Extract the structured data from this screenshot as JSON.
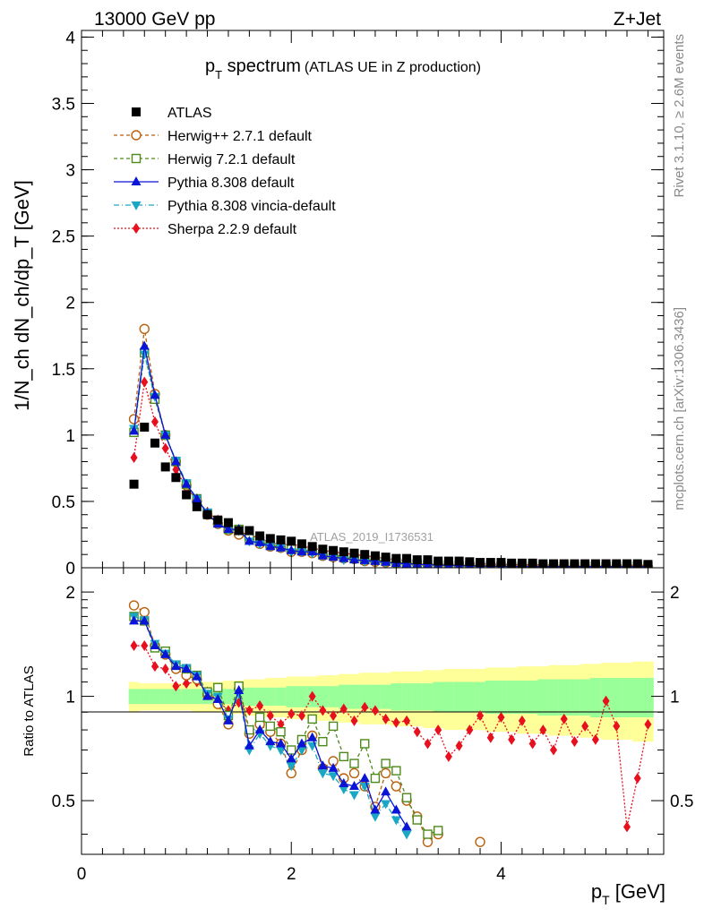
{
  "header": {
    "left": "13000 GeV pp",
    "right": "Z+Jet",
    "rivet": "Rivet 3.1.10, ≥ 2.6M events",
    "mcplots": "mcplots.cern.ch [arXiv:1306.3436]"
  },
  "chart_data": [
    {
      "type": "scatter",
      "title_main": "p",
      "title_sub": "T",
      "title_rest": " spectrum",
      "title_note": "(ATLAS UE in Z production)",
      "ylabel": "1/N_ch dN_ch/dp_T [GeV]",
      "watermark": "ATLAS_2019_I1736531",
      "xlim": [
        0,
        5.55
      ],
      "ylim": [
        0,
        4.05
      ],
      "yticks": [
        "0",
        "0.5",
        "1",
        "1.5",
        "2",
        "2.5",
        "3",
        "3.5",
        "4"
      ],
      "x": [
        0.5,
        0.6,
        0.7,
        0.8,
        0.9,
        1.0,
        1.1,
        1.2,
        1.3,
        1.4,
        1.5,
        1.6,
        1.7,
        1.8,
        1.9,
        2.0,
        2.1,
        2.2,
        2.3,
        2.4,
        2.5,
        2.6,
        2.7,
        2.8,
        2.9,
        3.0,
        3.1,
        3.2,
        3.3,
        3.4,
        3.5,
        3.6,
        3.7,
        3.8,
        3.9,
        4.0,
        4.1,
        4.2,
        4.3,
        4.4,
        4.5,
        4.6,
        4.7,
        4.8,
        4.9,
        5.0,
        5.1,
        5.2,
        5.3,
        5.4
      ],
      "series": [
        {
          "name": "ATLAS",
          "color": "#000000",
          "marker": "square-filled",
          "values": [
            0.63,
            1.06,
            0.94,
            0.76,
            0.68,
            0.55,
            0.46,
            0.4,
            0.36,
            0.34,
            0.28,
            0.28,
            0.24,
            0.22,
            0.21,
            0.2,
            0.18,
            0.16,
            0.14,
            0.13,
            0.12,
            0.11,
            0.1,
            0.09,
            0.08,
            0.07,
            0.07,
            0.06,
            0.06,
            0.05,
            0.05,
            0.05,
            0.045,
            0.04,
            0.04,
            0.04,
            0.035,
            0.035,
            0.035,
            0.03,
            0.03,
            0.03,
            0.03,
            0.03,
            0.03,
            0.03,
            0.03,
            0.03,
            0.03,
            0.025
          ]
        },
        {
          "name": "Herwig++ 2.7.1 default",
          "color": "#b8600a",
          "marker": "circle-open",
          "dash": "4,3",
          "values": [
            1.12,
            1.8,
            1.31,
            1.0,
            0.8,
            0.62,
            0.5,
            0.4,
            0.33,
            0.28,
            0.25,
            0.22,
            0.18,
            0.16,
            0.15,
            0.12,
            0.12,
            0.11,
            0.09,
            0.08,
            0.07,
            0.065,
            0.05,
            0.045,
            0.04,
            0.035,
            0.03,
            0.025,
            0.02,
            0.02,
            0.02,
            0.015,
            0.015,
            0.015,
            0.012,
            0.01,
            0.01,
            0.01,
            0.01,
            0.01,
            0.01,
            0.008,
            0.008,
            0.008,
            0.008,
            0.008,
            0.008,
            0.008,
            0.008,
            0.008
          ]
        },
        {
          "name": "Herwig 7.2.1 default",
          "color": "#4e8a1b",
          "marker": "square-open",
          "dash": "4,3",
          "values": [
            1.02,
            1.62,
            1.27,
            1.0,
            0.8,
            0.63,
            0.52,
            0.41,
            0.35,
            0.29,
            0.29,
            0.22,
            0.2,
            0.17,
            0.16,
            0.14,
            0.13,
            0.13,
            0.1,
            0.1,
            0.08,
            0.07,
            0.06,
            0.06,
            0.05,
            0.04,
            0.035,
            0.03,
            0.025,
            0.022,
            0.02,
            0.018,
            0.016,
            0.015,
            0.013,
            0.012,
            0.012,
            0.011,
            0.01,
            0.01,
            0.01,
            0.01,
            0.01,
            0.01,
            0.01,
            0.01,
            0.01,
            0.01,
            0.01,
            0.01
          ]
        },
        {
          "name": "Pythia 8.308 default",
          "color": "#0a14d6",
          "marker": "triangle-up",
          "values": [
            1.03,
            1.67,
            1.3,
            1.0,
            0.8,
            0.63,
            0.52,
            0.41,
            0.33,
            0.29,
            0.29,
            0.2,
            0.19,
            0.16,
            0.15,
            0.13,
            0.12,
            0.12,
            0.09,
            0.08,
            0.07,
            0.06,
            0.055,
            0.048,
            0.042,
            0.034,
            0.03,
            0.026,
            0.022,
            0.02,
            0.018,
            0.016,
            0.014,
            0.013,
            0.012,
            0.011,
            0.01,
            0.01,
            0.01,
            0.009,
            0.009,
            0.009,
            0.009,
            0.009,
            0.009,
            0.009,
            0.009,
            0.009,
            0.009,
            0.009
          ]
        },
        {
          "name": "Pythia 8.308 vincia-default",
          "color": "#1aa7c4",
          "marker": "triangle-down",
          "dash": "6,3,1,3",
          "values": [
            1.05,
            1.61,
            1.29,
            1.0,
            0.81,
            0.64,
            0.52,
            0.42,
            0.33,
            0.29,
            0.28,
            0.2,
            0.18,
            0.16,
            0.15,
            0.12,
            0.12,
            0.11,
            0.09,
            0.08,
            0.06,
            0.06,
            0.05,
            0.045,
            0.04,
            0.032,
            0.028,
            0.025,
            0.021,
            0.019,
            0.017,
            0.015,
            0.014,
            0.013,
            0.012,
            0.011,
            0.01,
            0.01,
            0.01,
            0.009,
            0.009,
            0.009,
            0.009,
            0.009,
            0.009,
            0.009,
            0.009,
            0.009,
            0.009,
            0.009
          ]
        },
        {
          "name": "Sherpa 2.2.9 default",
          "color": "#e6101e",
          "marker": "diamond-filled",
          "dash": "2,2",
          "values": [
            0.83,
            1.4,
            1.1,
            0.9,
            0.74,
            0.6,
            0.51,
            0.42,
            0.36,
            0.31,
            0.27,
            0.25,
            0.22,
            0.19,
            0.17,
            0.18,
            0.16,
            0.15,
            0.13,
            0.12,
            0.11,
            0.1,
            0.09,
            0.08,
            0.07,
            0.06,
            0.055,
            0.05,
            0.045,
            0.04,
            0.037,
            0.034,
            0.032,
            0.03,
            0.028,
            0.026,
            0.025,
            0.024,
            0.023,
            0.022,
            0.021,
            0.02,
            0.02,
            0.02,
            0.02,
            0.02,
            0.02,
            0.02,
            0.018,
            0.018
          ]
        }
      ]
    },
    {
      "type": "scatter",
      "ylabel": "Ratio to ATLAS",
      "xlabel": "p_T [GeV]",
      "xlim": [
        0,
        5.55
      ],
      "ylim": [
        0.35,
        2.35
      ],
      "log_y": true,
      "yticks": [
        "0.5",
        "1",
        "2"
      ],
      "xticks": [
        "0",
        "2",
        "4"
      ],
      "x": [
        0.5,
        0.6,
        0.7,
        0.8,
        0.9,
        1.0,
        1.1,
        1.2,
        1.3,
        1.4,
        1.5,
        1.6,
        1.7,
        1.8,
        1.9,
        2.0,
        2.1,
        2.2,
        2.3,
        2.4,
        2.5,
        2.6,
        2.7,
        2.8,
        2.9,
        3.0,
        3.1,
        3.2,
        3.3,
        3.4,
        3.5,
        3.6,
        3.7,
        3.8,
        3.9,
        4.0,
        4.1,
        4.2,
        4.3,
        4.4,
        4.5,
        4.6,
        4.7,
        4.8,
        4.9,
        5.0,
        5.1,
        5.2,
        5.3,
        5.4
      ],
      "band_stat": [
        0.05,
        0.05,
        0.05,
        0.05,
        0.05,
        0.05,
        0.05,
        0.05,
        0.05,
        0.05,
        0.05,
        0.06,
        0.06,
        0.06,
        0.06,
        0.07,
        0.07,
        0.07,
        0.07,
        0.07,
        0.08,
        0.08,
        0.08,
        0.08,
        0.08,
        0.09,
        0.09,
        0.09,
        0.09,
        0.1,
        0.1,
        0.1,
        0.1,
        0.1,
        0.11,
        0.11,
        0.11,
        0.11,
        0.11,
        0.12,
        0.12,
        0.12,
        0.12,
        0.12,
        0.13,
        0.13,
        0.13,
        0.13,
        0.13,
        0.13
      ],
      "band_total": [
        0.1,
        0.09,
        0.09,
        0.09,
        0.09,
        0.09,
        0.1,
        0.1,
        0.1,
        0.11,
        0.11,
        0.12,
        0.12,
        0.13,
        0.13,
        0.14,
        0.14,
        0.14,
        0.15,
        0.15,
        0.16,
        0.16,
        0.17,
        0.17,
        0.17,
        0.18,
        0.18,
        0.18,
        0.19,
        0.19,
        0.2,
        0.2,
        0.2,
        0.2,
        0.21,
        0.21,
        0.21,
        0.22,
        0.22,
        0.22,
        0.23,
        0.23,
        0.23,
        0.24,
        0.24,
        0.25,
        0.25,
        0.25,
        0.26,
        0.26
      ],
      "series": [
        {
          "name": "Herwig++ 2.7.1 default",
          "color": "#b8600a",
          "marker": "circle-open",
          "dash": "4,3",
          "values": [
            1.83,
            1.75,
            1.4,
            1.32,
            1.2,
            1.15,
            1.12,
            1.01,
            0.95,
            0.83,
            1.05,
            0.78,
            0.83,
            0.79,
            0.73,
            0.6,
            0.7,
            0.77,
            0.62,
            0.65,
            0.58,
            0.6,
            0.55,
            0.48,
            0.6,
            0.55,
            0.5,
            0.45,
            0.38,
            0.4,
            null,
            null,
            null,
            0.38,
            null,
            null,
            null,
            null,
            null,
            null,
            null,
            null,
            null,
            null,
            null,
            null,
            null,
            null,
            null,
            null
          ]
        },
        {
          "name": "Herwig 7.2.1 default",
          "color": "#4e8a1b",
          "marker": "square-open",
          "dash": "4,3",
          "values": [
            1.7,
            1.65,
            1.38,
            1.35,
            1.23,
            1.2,
            1.15,
            1.03,
            1.06,
            0.88,
            1.07,
            0.8,
            0.87,
            0.82,
            0.79,
            0.7,
            0.75,
            0.86,
            0.74,
            0.82,
            0.67,
            0.64,
            0.73,
            0.58,
            0.64,
            0.61,
            0.51,
            0.44,
            0.4,
            0.41,
            null,
            null,
            null,
            null,
            null,
            null,
            null,
            null,
            null,
            null,
            null,
            null,
            null,
            null,
            null,
            null,
            null,
            null,
            null,
            null
          ]
        },
        {
          "name": "Pythia 8.308 default",
          "color": "#0a14d6",
          "marker": "triangle-up",
          "values": [
            1.65,
            1.65,
            1.4,
            1.32,
            1.22,
            1.2,
            1.14,
            1.0,
            0.98,
            0.85,
            1.04,
            0.72,
            0.8,
            0.74,
            0.73,
            0.66,
            0.73,
            0.76,
            0.63,
            0.62,
            0.56,
            0.55,
            0.58,
            0.47,
            0.53,
            0.47,
            0.42,
            null,
            null,
            null,
            null,
            null,
            null,
            null,
            null,
            null,
            null,
            null,
            null,
            null,
            null,
            null,
            null,
            null,
            null,
            null,
            null,
            null,
            null,
            null
          ]
        },
        {
          "name": "Pythia 8.308 vincia-default",
          "color": "#1aa7c4",
          "marker": "triangle-down",
          "dash": "6,3,1,3",
          "values": [
            1.7,
            1.66,
            1.42,
            1.33,
            1.24,
            1.21,
            1.15,
            1.02,
            1.0,
            0.86,
            1.02,
            0.7,
            0.78,
            0.72,
            0.7,
            0.63,
            0.7,
            0.72,
            0.6,
            0.59,
            0.54,
            0.52,
            0.55,
            0.45,
            0.49,
            0.44,
            0.4,
            null,
            null,
            null,
            null,
            null,
            null,
            null,
            null,
            null,
            null,
            null,
            null,
            null,
            null,
            null,
            null,
            null,
            null,
            null,
            null,
            null,
            null,
            null
          ]
        },
        {
          "name": "Sherpa 2.2.9 default",
          "color": "#e6101e",
          "marker": "diamond-filled",
          "dash": "2,2",
          "values": [
            1.4,
            1.4,
            1.22,
            1.2,
            1.07,
            1.09,
            1.1,
            1.03,
            0.97,
            0.91,
            0.96,
            0.91,
            0.94,
            0.88,
            0.83,
            0.89,
            0.88,
            1.0,
            0.91,
            0.88,
            0.92,
            0.85,
            0.93,
            0.91,
            0.86,
            0.84,
            0.85,
            0.79,
            0.73,
            0.8,
            0.67,
            0.72,
            0.8,
            0.88,
            0.76,
            0.87,
            0.75,
            0.85,
            0.73,
            0.8,
            0.7,
            0.86,
            0.74,
            0.82,
            0.75,
            0.97,
            0.82,
            0.42,
            0.58,
            0.83
          ]
        }
      ]
    }
  ]
}
